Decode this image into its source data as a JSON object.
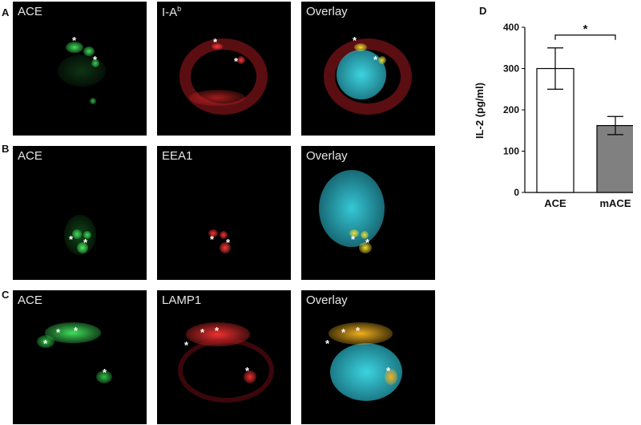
{
  "rows": [
    {
      "label": "A",
      "panels": [
        "ACE",
        "I-A",
        "Overlay"
      ],
      "sup": "b"
    },
    {
      "label": "B",
      "panels": [
        "ACE",
        "EEA1",
        "Overlay"
      ]
    },
    {
      "label": "C",
      "panels": [
        "ACE",
        "LAMP1",
        "Overlay"
      ]
    }
  ],
  "star_symbol": "*",
  "colors": {
    "green": "#22c43a",
    "red": "#e0242a",
    "cyan": "#2fc6d6",
    "yellow": "#e6d21e",
    "bar_ace": "#ffffff",
    "bar_mace": "#808080"
  },
  "chart_label": "D",
  "chart_data": {
    "type": "bar",
    "categories": [
      "ACE",
      "mACE"
    ],
    "values": [
      300,
      162
    ],
    "errors": [
      50,
      22
    ],
    "ylabel": "IL-2 (pg/ml)",
    "ylim": [
      0,
      400
    ],
    "yticks": [
      0,
      100,
      200,
      300,
      400
    ],
    "significance": "*"
  }
}
